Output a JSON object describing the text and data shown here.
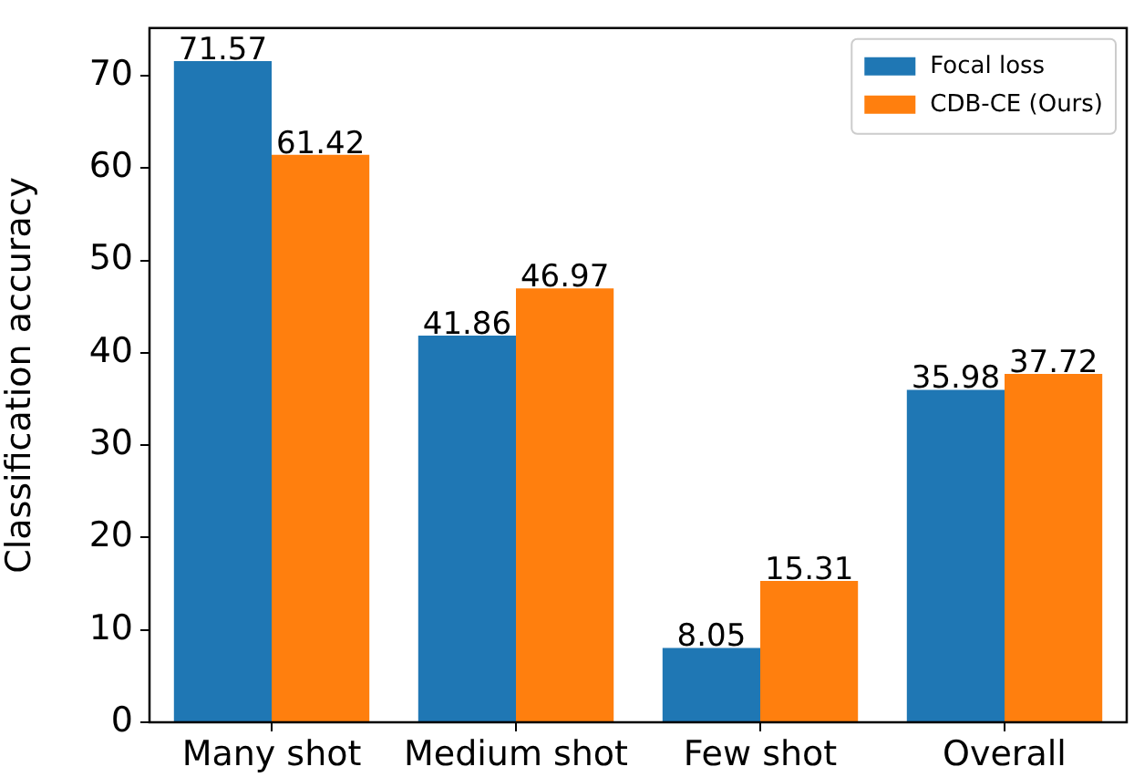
{
  "chart_data": {
    "type": "bar",
    "categories": [
      "Many shot",
      "Medium shot",
      "Few shot",
      "Overall"
    ],
    "series": [
      {
        "name": "Focal loss",
        "color": "#1f77b4",
        "values": [
          71.57,
          41.86,
          8.05,
          35.98
        ]
      },
      {
        "name": "CDB-CE (Ours)",
        "color": "#ff7f0e",
        "values": [
          61.42,
          46.97,
          15.31,
          37.72
        ]
      }
    ],
    "ylabel": "Classification accuracy",
    "ylim": [
      0,
      75.15
    ],
    "yticks": [
      0,
      10,
      20,
      30,
      40,
      50,
      60,
      70
    ],
    "data_labels": true,
    "legend": "top right"
  }
}
